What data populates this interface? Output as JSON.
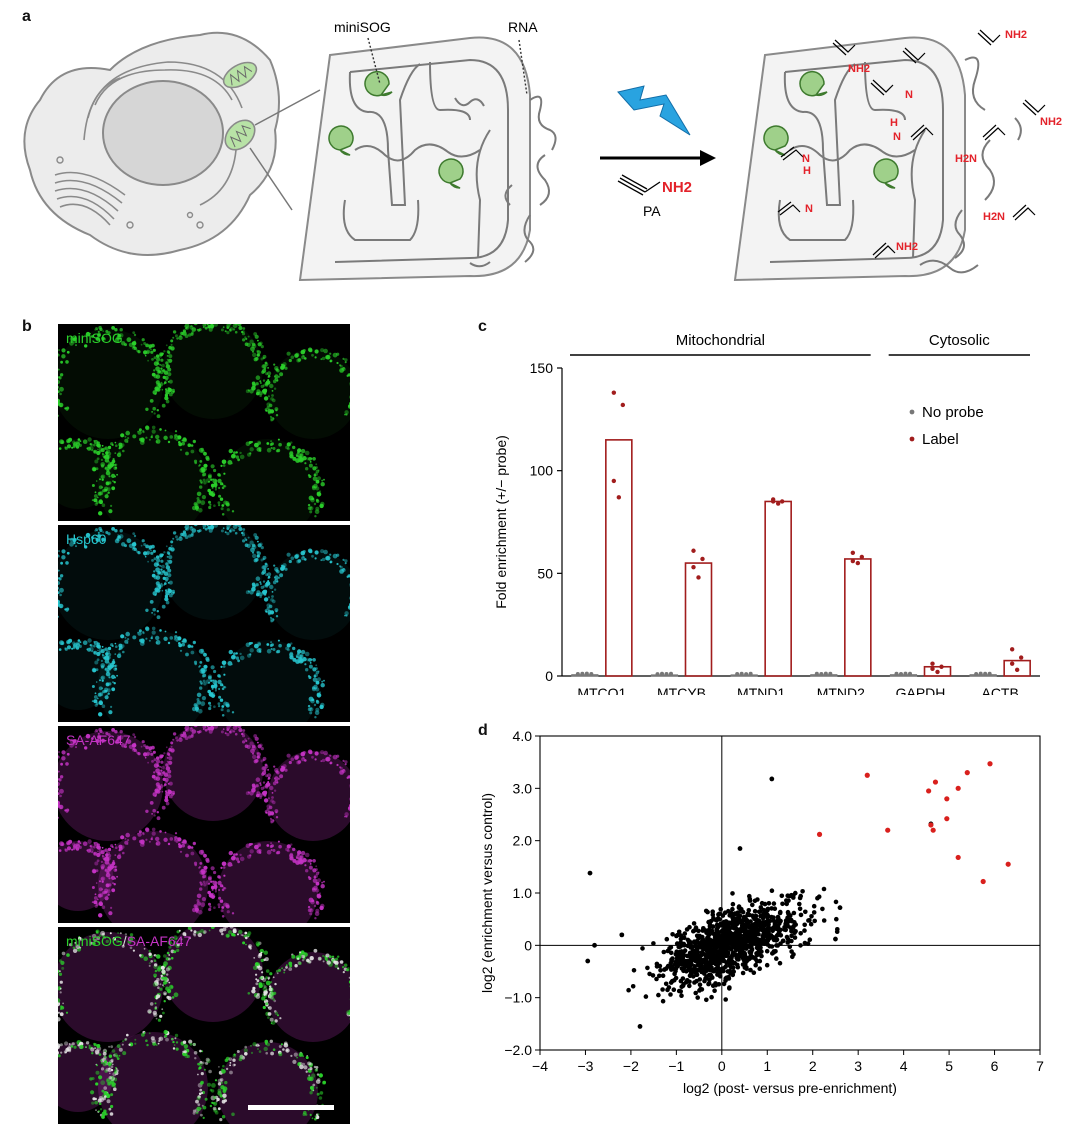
{
  "panels": {
    "a": {
      "letter": "a",
      "labels": {
        "minisog": "miniSOG",
        "rna": "RNA",
        "pa": "PA",
        "nh2": "NH2",
        "nh": "N",
        "h": "H",
        "h2n": "H2N"
      }
    },
    "b": {
      "letter": "b",
      "images": [
        {
          "label": "miniSOG",
          "color": "#2bd12b"
        },
        {
          "label": "Hsp60",
          "color": "#27c6cf"
        },
        {
          "label": "SA-AF647",
          "color": "#c533c5"
        },
        {
          "label_a": "miniSOG",
          "label_sep": "/",
          "label_b": "SA-AF647",
          "color_a": "#2bd12b",
          "color_b": "#c533c5"
        }
      ]
    },
    "c": {
      "letter": "c"
    },
    "d": {
      "letter": "d"
    }
  },
  "chart_data": [
    {
      "type": "bar",
      "ylabel": "Fold enrichment (+/− probe)",
      "ylim": [
        0,
        150
      ],
      "yticks": [
        0,
        50,
        100,
        150
      ],
      "categories": [
        "MTCO1",
        "MTCYB",
        "MTND1",
        "MTND2",
        "GAPDH",
        "ACTB"
      ],
      "groups": [
        {
          "label": "Mitochondrial",
          "from": 0,
          "to": 3
        },
        {
          "label": "Cytosolic",
          "from": 4,
          "to": 5
        }
      ],
      "legend": {
        "position": "top-right"
      },
      "series": [
        {
          "name": "No probe",
          "color": "#777777",
          "values": [
            0.6,
            0.5,
            0.5,
            0.6,
            0.6,
            0.6
          ],
          "points": [
            [
              0.5,
              0.6,
              0.7,
              0.5
            ],
            [
              0.4,
              0.6,
              0.5,
              0.6
            ],
            [
              0.5,
              0.6,
              0.4,
              0.6
            ],
            [
              0.6,
              0.5,
              0.7,
              0.6
            ],
            [
              0.6,
              0.5,
              0.7,
              0.6
            ],
            [
              0.5,
              0.7,
              0.6,
              0.6
            ]
          ]
        },
        {
          "name": "Label",
          "color": "#a11d1d",
          "values": [
            115,
            55,
            85,
            57,
            4.5,
            7.5
          ],
          "points": [
            [
              138,
              132,
              95,
              87
            ],
            [
              61,
              57,
              53,
              48
            ],
            [
              86,
              85,
              85,
              84
            ],
            [
              60,
              58,
              56,
              55
            ],
            [
              6,
              4.5,
              3.5,
              2
            ],
            [
              13,
              9,
              6,
              3
            ]
          ]
        }
      ]
    },
    {
      "type": "scatter",
      "xlabel": "log2 (post- versus pre-enrichment)",
      "ylabel": "log2 (enrichment versus control)",
      "xlim": [
        -4,
        7
      ],
      "ylim": [
        -2,
        4
      ],
      "xticks": [
        "−4",
        "−3",
        "−2",
        "−1",
        "0",
        "1",
        "2",
        "3",
        "4",
        "5",
        "6",
        "7"
      ],
      "yticks": [
        "−2.0",
        "−1.0",
        "0",
        "1.0",
        "2.0",
        "3.0",
        "4.0"
      ],
      "series": [
        {
          "name": "",
          "color": "#d9201d",
          "points": [
            [
              3.2,
              3.25
            ],
            [
              2.15,
              2.12
            ],
            [
              3.65,
              2.2
            ],
            [
              4.55,
              2.95
            ],
            [
              4.7,
              3.12
            ],
            [
              5.4,
              3.3
            ],
            [
              5.9,
              3.47
            ],
            [
              4.95,
              2.8
            ],
            [
              5.2,
              3.0
            ],
            [
              4.95,
              2.42
            ],
            [
              4.65,
              2.2
            ],
            [
              4.6,
              2.3
            ],
            [
              5.2,
              1.68
            ],
            [
              5.75,
              1.22
            ],
            [
              6.3,
              1.55
            ]
          ]
        },
        {
          "name": "",
          "color": "#000000",
          "points": [
            [
              1.1,
              3.18
            ],
            [
              4.6,
              2.32
            ],
            [
              -2.9,
              1.38
            ],
            [
              -2.95,
              -0.3
            ],
            [
              -2.8,
              0.0
            ],
            [
              0.4,
              1.85
            ],
            [
              2.5,
              0.12
            ],
            [
              2.6,
              0.72
            ],
            [
              -2.2,
              0.2
            ],
            [
              -1.8,
              -1.55
            ]
          ]
        },
        {
          "name": "",
          "color": "#000000",
          "generated": {
            "count": 1100,
            "seed": 7
          }
        }
      ]
    }
  ]
}
